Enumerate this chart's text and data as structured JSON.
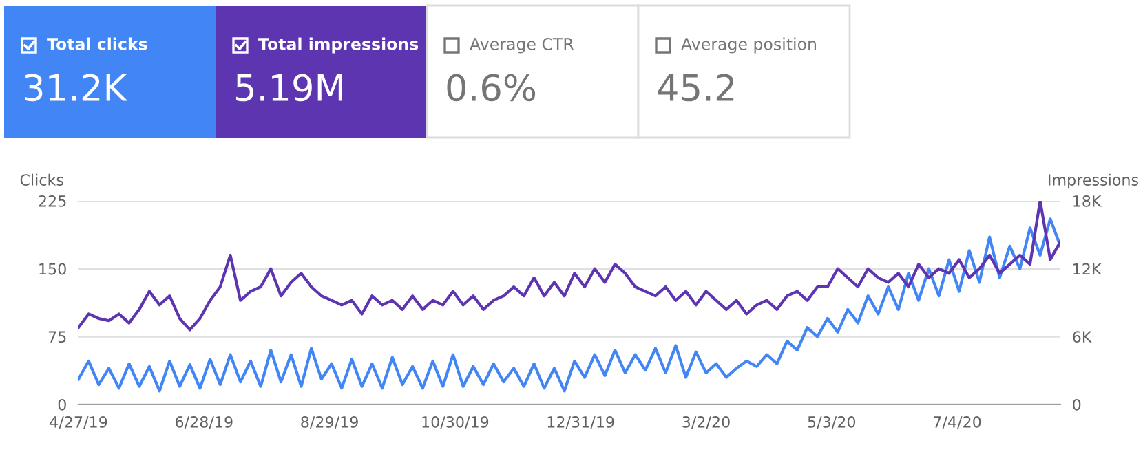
{
  "chart_data": [
    {
      "type": "other",
      "categories": [
        "Total clicks",
        "Total impressions",
        "Average CTR",
        "Average position"
      ],
      "value_labels": [
        "31.2K",
        "5.19M",
        "0.6%",
        "45.2"
      ],
      "colors": [
        "#4285f4",
        "#5e35b1",
        null,
        null
      ]
    },
    {
      "type": "line",
      "ylabel": "Clicks",
      "y2label": "Impressions",
      "grid": "y",
      "x": [
        "2019-04-27",
        "2019-05-02",
        "2019-05-07",
        "2019-05-12",
        "2019-05-17",
        "2019-05-22",
        "2019-05-27",
        "2019-06-01",
        "2019-06-06",
        "2019-06-11",
        "2019-06-16",
        "2019-06-21",
        "2019-06-26",
        "2019-07-01",
        "2019-07-06",
        "2019-07-11",
        "2019-07-16",
        "2019-07-21",
        "2019-07-26",
        "2019-07-31",
        "2019-08-05",
        "2019-08-10",
        "2019-08-15",
        "2019-08-20",
        "2019-08-25",
        "2019-08-30",
        "2019-09-04",
        "2019-09-09",
        "2019-09-14",
        "2019-09-19",
        "2019-09-24",
        "2019-09-29",
        "2019-10-04",
        "2019-10-09",
        "2019-10-14",
        "2019-10-19",
        "2019-10-24",
        "2019-10-29",
        "2019-11-03",
        "2019-11-08",
        "2019-11-13",
        "2019-11-18",
        "2019-11-23",
        "2019-11-28",
        "2019-12-03",
        "2019-12-08",
        "2019-12-13",
        "2019-12-18",
        "2019-12-23",
        "2019-12-28",
        "2020-01-02",
        "2020-01-07",
        "2020-01-12",
        "2020-01-17",
        "2020-01-22",
        "2020-01-27",
        "2020-02-01",
        "2020-02-06",
        "2020-02-11",
        "2020-02-16",
        "2020-02-21",
        "2020-02-26",
        "2020-03-02",
        "2020-03-07",
        "2020-03-12",
        "2020-03-17",
        "2020-03-22",
        "2020-03-27",
        "2020-04-01",
        "2020-04-06",
        "2020-04-11",
        "2020-04-16",
        "2020-04-21",
        "2020-04-26",
        "2020-05-01",
        "2020-05-06",
        "2020-05-11",
        "2020-05-16",
        "2020-05-21",
        "2020-05-26",
        "2020-05-31",
        "2020-06-05",
        "2020-06-10",
        "2020-06-15",
        "2020-06-20",
        "2020-06-25",
        "2020-06-30",
        "2020-07-05",
        "2020-07-10",
        "2020-07-15",
        "2020-07-20",
        "2020-07-25",
        "2020-07-30",
        "2020-08-04",
        "2020-08-09",
        "2020-08-14",
        "2020-08-19",
        "2020-08-24"
      ],
      "series": [
        {
          "color": "#4285f4",
          "values": [
            28,
            48,
            22,
            40,
            18,
            45,
            20,
            42,
            15,
            48,
            20,
            44,
            18,
            50,
            22,
            55,
            25,
            48,
            20,
            60,
            25,
            55,
            20,
            62,
            28,
            45,
            18,
            50,
            20,
            45,
            18,
            52,
            22,
            42,
            18,
            48,
            20,
            55,
            20,
            42,
            22,
            45,
            25,
            40,
            20,
            45,
            18,
            40,
            15,
            48,
            30,
            55,
            32,
            60,
            35,
            55,
            38,
            62,
            35,
            65,
            30,
            58,
            35,
            45,
            30,
            40,
            48,
            42,
            55,
            45,
            70,
            60,
            85,
            75,
            95,
            80,
            105,
            90,
            120,
            100,
            130,
            105,
            145,
            115,
            150,
            120,
            160,
            125,
            170,
            135,
            185,
            140,
            175,
            150,
            195,
            165,
            205,
            175
          ]
        },
        {
          "color": "#5e35b1",
          "axis": "y2",
          "values": [
            6800,
            8000,
            7600,
            7400,
            8000,
            7200,
            8400,
            10000,
            8800,
            9600,
            7600,
            6600,
            7600,
            9200,
            10400,
            13200,
            9200,
            10000,
            10400,
            12000,
            9600,
            10800,
            11600,
            10400,
            9600,
            9200,
            8800,
            9200,
            8000,
            9600,
            8800,
            9200,
            8400,
            9600,
            8400,
            9200,
            8800,
            10000,
            8800,
            9600,
            8400,
            9200,
            9600,
            10400,
            9600,
            11200,
            9600,
            10800,
            9600,
            11600,
            10400,
            12000,
            10800,
            12400,
            11600,
            10400,
            10000,
            9600,
            10400,
            9200,
            10000,
            8800,
            10000,
            9200,
            8400,
            9200,
            8000,
            8800,
            9200,
            8400,
            9600,
            10000,
            9200,
            10400,
            10400,
            12000,
            11200,
            10400,
            12000,
            11200,
            10800,
            11600,
            10400,
            12400,
            11200,
            12000,
            11600,
            12800,
            11200,
            12000,
            13200,
            11600,
            12400,
            13200,
            12400,
            18000,
            12800,
            14400
          ]
        }
      ],
      "xlim": [
        "2019-04-27",
        "2020-08-24"
      ],
      "xticks": [
        {
          "value": "2019-04-27",
          "label": "4/27/19"
        },
        {
          "value": "2019-06-28",
          "label": "6/28/19"
        },
        {
          "value": "2019-08-29",
          "label": "8/29/19"
        },
        {
          "value": "2019-10-30",
          "label": "10/30/19"
        },
        {
          "value": "2019-12-31",
          "label": "12/31/19"
        },
        {
          "value": "2020-03-02",
          "label": "3/2/20"
        },
        {
          "value": "2020-05-03",
          "label": "5/3/20"
        },
        {
          "value": "2020-07-04",
          "label": "7/4/20"
        }
      ],
      "ylim": [
        0,
        225
      ],
      "yticks": [
        0,
        75,
        150,
        225
      ],
      "y2lim": [
        0,
        18000
      ],
      "y2ticks": [
        0,
        {
          "value": 6000,
          "label": "6K"
        },
        {
          "value": 12000,
          "label": "12K"
        },
        {
          "value": 18000,
          "label": "18K"
        }
      ]
    }
  ]
}
